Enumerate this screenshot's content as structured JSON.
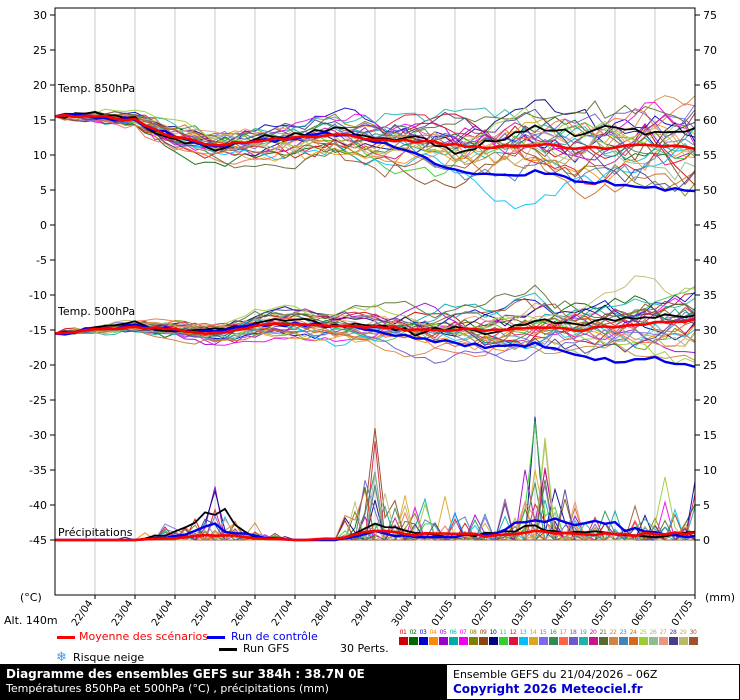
{
  "axes": {
    "left_unit": "(°C)",
    "right_unit": "(mm)",
    "alt_label": "Alt. 140m",
    "left_ticks": [
      30,
      25,
      20,
      15,
      10,
      5,
      0,
      -5,
      -10,
      -15,
      -20,
      -25,
      -30,
      -35,
      -40,
      -45
    ],
    "right_ticks": [
      75,
      70,
      65,
      60,
      55,
      50,
      45,
      40,
      35,
      30,
      25,
      20,
      15,
      10,
      5,
      0
    ]
  },
  "legend": {
    "mean": {
      "label": "Moyenne des scénarios",
      "color": "#ff0000"
    },
    "control": {
      "label": "Run de contrôle",
      "color": "#0000ee"
    },
    "gfs": {
      "label": "Run GFS",
      "color": "#000000"
    },
    "perts_label": "30 Perts.",
    "snow": {
      "label": "Risque neige",
      "icon": "snowflake-icon",
      "icon_color": "#3399ff"
    },
    "members": [
      {
        "num": "01",
        "color": "#cc0000"
      },
      {
        "num": "02",
        "color": "#006600"
      },
      {
        "num": "03",
        "color": "#0000cc"
      },
      {
        "num": "04",
        "color": "#ff8800"
      },
      {
        "num": "05",
        "color": "#9900cc"
      },
      {
        "num": "06",
        "color": "#00aaaa"
      },
      {
        "num": "07",
        "color": "#ee00ee"
      },
      {
        "num": "08",
        "color": "#808000"
      },
      {
        "num": "09",
        "color": "#8b4513"
      },
      {
        "num": "10",
        "color": "#000080"
      },
      {
        "num": "11",
        "color": "#32cd32"
      },
      {
        "num": "12",
        "color": "#dc143c"
      },
      {
        "num": "13",
        "color": "#00bfff"
      },
      {
        "num": "14",
        "color": "#daa520"
      },
      {
        "num": "15",
        "color": "#7b68ee"
      },
      {
        "num": "16",
        "color": "#2e8b57"
      },
      {
        "num": "17",
        "color": "#ff6347"
      },
      {
        "num": "18",
        "color": "#6a5acd"
      },
      {
        "num": "19",
        "color": "#20b2aa"
      },
      {
        "num": "20",
        "color": "#c71585"
      },
      {
        "num": "21",
        "color": "#556b2f"
      },
      {
        "num": "22",
        "color": "#cd853f"
      },
      {
        "num": "23",
        "color": "#4682b4"
      },
      {
        "num": "24",
        "color": "#d2691e"
      },
      {
        "num": "25",
        "color": "#9acd32"
      },
      {
        "num": "26",
        "color": "#8fbc8f"
      },
      {
        "num": "27",
        "color": "#e9967a"
      },
      {
        "num": "28",
        "color": "#483d8b"
      },
      {
        "num": "29",
        "color": "#bdb76b"
      },
      {
        "num": "30",
        "color": "#a0522d"
      }
    ]
  },
  "footer": {
    "left_line1": "Diagramme des ensembles GEFS sur 384h : 38.7N 0E",
    "left_line2": "Températures 850hPa et 500hPa (°C) , précipitations (mm)",
    "right_line1": "Ensemble GEFS du 21/04/2026 – 06Z",
    "right_line2": "Copyright 2026 Meteociel.fr",
    "copyright_color": "#0000cc"
  },
  "chart_data": {
    "type": "line",
    "title": "Diagramme des ensembles GEFS sur 384h : 38.7N 0E",
    "hours": 384,
    "step_hours": 6,
    "dates": [
      "22/04",
      "23/04",
      "24/04",
      "25/04",
      "26/04",
      "27/04",
      "28/04",
      "29/04",
      "30/04",
      "01/05",
      "02/05",
      "03/05",
      "04/05",
      "05/05",
      "06/05",
      "07/05"
    ],
    "ylim_temp_c": [
      -45,
      30
    ],
    "ylim_precip_mm": [
      0,
      75
    ],
    "t850": {
      "label": "Temp. 850hPa",
      "mean": [
        15.5,
        15.5,
        15.0,
        12.5,
        11.5,
        12.0,
        12.5,
        13.0,
        12.0,
        12.0,
        11.5,
        11.0,
        11.5,
        11.0,
        11.0,
        11.5,
        11.0
      ],
      "control": [
        15.5,
        15.5,
        15.0,
        12.5,
        11.0,
        12.0,
        12.5,
        13.0,
        12.0,
        10.0,
        8.0,
        7.0,
        7.5,
        6.5,
        6.0,
        5.5,
        4.5
      ],
      "gfs": [
        15.5,
        16.0,
        15.0,
        12.0,
        11.0,
        12.5,
        13.0,
        14.0,
        12.0,
        13.0,
        10.5,
        12.0,
        14.0,
        13.0,
        14.0,
        13.0,
        13.5
      ],
      "spread": [
        0.3,
        0.6,
        1.2,
        1.8,
        2.0,
        2.2,
        2.2,
        2.5,
        2.8,
        3.0,
        3.2,
        3.5,
        3.5,
        3.8,
        4.0,
        4.5,
        4.5
      ]
    },
    "t500": {
      "label": "Temp. 500hPa",
      "mean": [
        -15.5,
        -15.0,
        -14.5,
        -15.0,
        -15.5,
        -14.5,
        -14.0,
        -14.5,
        -14.5,
        -15.0,
        -15.0,
        -15.0,
        -14.5,
        -15.0,
        -14.5,
        -14.0,
        -13.5
      ],
      "control": [
        -15.5,
        -15.0,
        -14.5,
        -15.0,
        -15.5,
        -14.5,
        -14.0,
        -14.5,
        -15.0,
        -16.0,
        -17.0,
        -17.5,
        -17.0,
        -18.5,
        -19.5,
        -19.0,
        -20.5
      ],
      "gfs": [
        -15.5,
        -15.0,
        -14.0,
        -15.5,
        -15.0,
        -14.0,
        -13.5,
        -14.5,
        -14.0,
        -15.5,
        -14.5,
        -15.5,
        -13.5,
        -14.5,
        -13.5,
        -13.0,
        -13.0
      ],
      "spread": [
        0.3,
        0.5,
        0.8,
        1.0,
        1.2,
        1.4,
        1.5,
        1.6,
        2.0,
        2.2,
        2.5,
        2.8,
        3.0,
        3.0,
        3.2,
        3.5,
        3.8
      ]
    },
    "precip": {
      "label": "Précipitations",
      "mean": [
        0,
        0,
        0,
        0.3,
        0.8,
        0.3,
        0,
        0.2,
        1.2,
        0.8,
        0.8,
        0.6,
        1.5,
        1.0,
        0.8,
        0.8,
        1.0
      ],
      "control": [
        0,
        0,
        0,
        0.5,
        2.0,
        0.5,
        0,
        0,
        1.0,
        0.5,
        0.5,
        1.0,
        3.0,
        3.0,
        2.0,
        1.0,
        0.5
      ],
      "gfs": [
        0,
        0,
        0,
        1.0,
        5.0,
        0.5,
        0,
        0,
        2.0,
        1.0,
        0.5,
        1.0,
        2.0,
        1.0,
        1.0,
        0.5,
        1.0
      ],
      "envelope": [
        0,
        0,
        0.5,
        3,
        7,
        2,
        0.5,
        0.5,
        16,
        6,
        5,
        3,
        17,
        6,
        4,
        5,
        8
      ],
      "forced_spikes": [
        {
          "m": 8,
          "t": 32,
          "v": 16
        },
        {
          "m": 10,
          "t": 48,
          "v": 17
        },
        {
          "m": 4,
          "t": 49,
          "v": 10
        },
        {
          "m": 9,
          "t": 16,
          "v": 7
        },
        {
          "m": 24,
          "t": 61,
          "v": 9
        }
      ]
    }
  }
}
